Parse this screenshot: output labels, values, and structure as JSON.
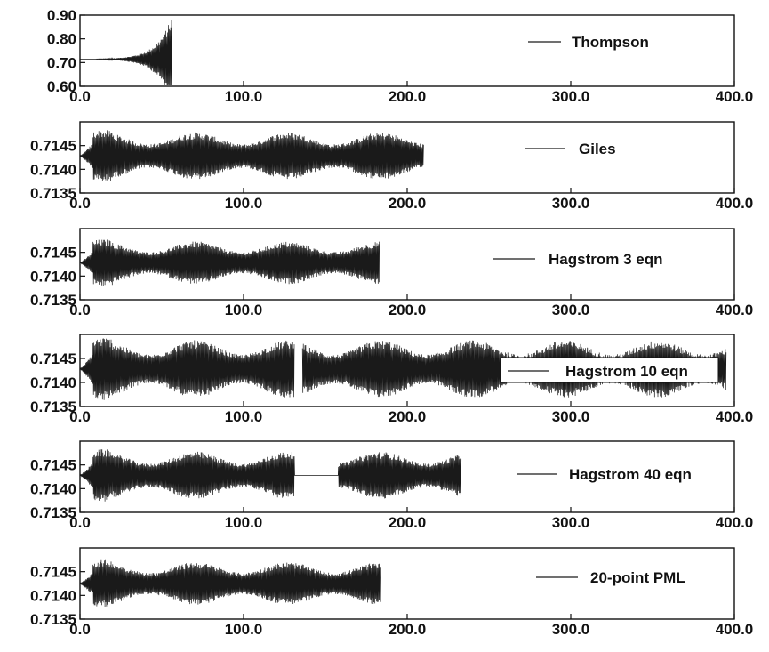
{
  "chart_data": [
    {
      "type": "line",
      "series": [
        {
          "name": "Thompson",
          "x_end": 56,
          "baseline": 0.714,
          "final_amplitude": 0.18,
          "growth": "exponential"
        }
      ],
      "ylim": [
        0.6,
        0.9
      ],
      "xlim": [
        0,
        400
      ],
      "yticks": [
        "0.90",
        "0.80",
        "0.70",
        "0.60"
      ],
      "xticks": [
        "0.0",
        "100.0",
        "200.0",
        "300.0",
        "400.0"
      ],
      "legend": "Thompson",
      "legend_loc": "top-right"
    },
    {
      "type": "line",
      "series": [
        {
          "name": "Giles",
          "x_end": 210,
          "baseline": 0.71428,
          "steady_amplitude": 0.0005
        }
      ],
      "ylim": [
        0.7135,
        0.715
      ],
      "xlim": [
        0,
        400
      ],
      "yticks": [
        "0.7145",
        "0.7140",
        "0.7135"
      ],
      "xticks": [
        "0.0",
        "100.0",
        "200.0",
        "300.0",
        "400.0"
      ],
      "legend": "Giles",
      "legend_loc": "top-right"
    },
    {
      "type": "line",
      "series": [
        {
          "name": "Hagstrom 3 eqn",
          "x_end": 183,
          "baseline": 0.71428,
          "steady_amplitude": 0.00045
        }
      ],
      "ylim": [
        0.7135,
        0.715
      ],
      "xlim": [
        0,
        400
      ],
      "yticks": [
        "0.7145",
        "0.7140",
        "0.7135"
      ],
      "xticks": [
        "0.0",
        "100.0",
        "200.0",
        "300.0",
        "400.0"
      ],
      "legend": "Hagstrom 3 eqn",
      "legend_loc": "top-right"
    },
    {
      "type": "line",
      "series": [
        {
          "name": "Hagstrom 10 eqn",
          "x_end": 395,
          "gap": [
            131,
            136
          ],
          "baseline": 0.71428,
          "steady_amplitude": 0.0006
        }
      ],
      "ylim": [
        0.7135,
        0.715
      ],
      "xlim": [
        0,
        400
      ],
      "yticks": [
        "0.7145",
        "0.7140",
        "0.7135"
      ],
      "xticks": [
        "0.0",
        "100.0",
        "200.0",
        "300.0",
        "400.0"
      ],
      "legend": "Hagstrom 10 eqn",
      "legend_loc": "top-right"
    },
    {
      "type": "line",
      "series": [
        {
          "name": "Hagstrom 40 eqn",
          "x_end": 233,
          "gap": [
            131,
            158
          ],
          "baseline": 0.71428,
          "steady_amplitude": 0.0005
        }
      ],
      "ylim": [
        0.7135,
        0.715
      ],
      "xlim": [
        0,
        400
      ],
      "yticks": [
        "0.7145",
        "0.7140",
        "0.7135"
      ],
      "xticks": [
        "0.0",
        "100.0",
        "200.0",
        "300.0",
        "400.0"
      ],
      "legend": "Hagstrom 40 eqn",
      "legend_loc": "top-right"
    },
    {
      "type": "line",
      "series": [
        {
          "name": "20-point PML",
          "x_end": 184,
          "baseline": 0.71425,
          "steady_amplitude": 0.00045
        }
      ],
      "ylim": [
        0.7135,
        0.715
      ],
      "xlim": [
        0,
        400
      ],
      "yticks": [
        "0.7145",
        "0.7140",
        "0.7135"
      ],
      "xticks": [
        "0.0",
        "100.0",
        "200.0",
        "300.0",
        "400.0"
      ],
      "legend": "20-point PML",
      "legend_loc": "top-right"
    }
  ],
  "colors": {
    "line": "#1a1a1a",
    "axes": "#111111",
    "background": "#ffffff"
  }
}
